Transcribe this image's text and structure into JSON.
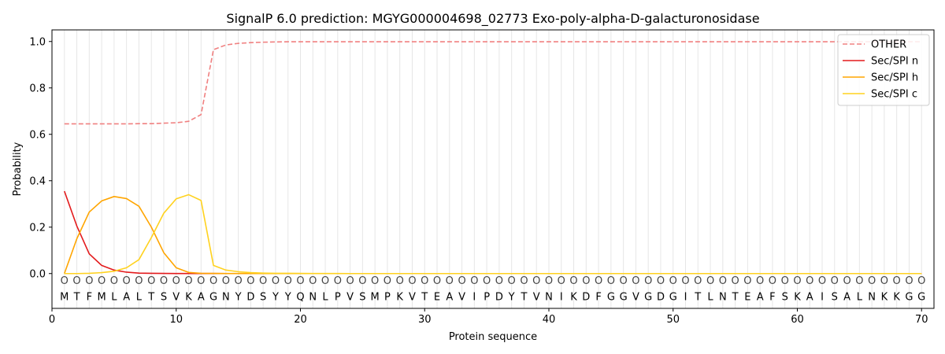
{
  "chart_data": {
    "type": "line",
    "title": "SignalP 6.0 prediction: MGYG000004698_02773 Exo-poly-alpha-D-galacturonosidase",
    "xlabel": "Protein sequence",
    "ylabel": "Probability",
    "xlim": [
      0,
      71
    ],
    "ylim": [
      -0.15,
      1.05
    ],
    "xticks": [
      0,
      10,
      20,
      30,
      40,
      50,
      60,
      70
    ],
    "yticks": [
      0.0,
      0.2,
      0.4,
      0.6,
      0.8,
      1.0
    ],
    "xtick_labels": [
      "0",
      "10",
      "20",
      "30",
      "40",
      "50",
      "60",
      "70"
    ],
    "ytick_labels": [
      "0.0",
      "0.2",
      "0.4",
      "0.6",
      "0.8",
      "1.0"
    ],
    "vertical_grid": true,
    "legend_position": "top-right",
    "sequence": [
      "M",
      "T",
      "F",
      "M",
      "L",
      "A",
      "L",
      "T",
      "S",
      "V",
      "K",
      "A",
      "G",
      "N",
      "Y",
      "D",
      "S",
      "Y",
      "Y",
      "Q",
      "N",
      "L",
      "P",
      "V",
      "S",
      "M",
      "P",
      "K",
      "V",
      "T",
      "E",
      "A",
      "V",
      "I",
      "P",
      "D",
      "Y",
      "T",
      "V",
      "N",
      "I",
      "K",
      "D",
      "F",
      "G",
      "G",
      "V",
      "G",
      "D",
      "G",
      "I",
      "T",
      "L",
      "N",
      "T",
      "E",
      "A",
      "F",
      "S",
      "K",
      "A",
      "I",
      "S",
      "A",
      "L",
      "N",
      "K",
      "K",
      "G",
      "G"
    ],
    "region_labels": [
      "O",
      "O",
      "O",
      "O",
      "O",
      "O",
      "O",
      "O",
      "O",
      "O",
      "O",
      "O",
      "O",
      "O",
      "O",
      "O",
      "O",
      "O",
      "O",
      "O",
      "O",
      "O",
      "O",
      "O",
      "O",
      "O",
      "O",
      "O",
      "O",
      "O",
      "O",
      "O",
      "O",
      "O",
      "O",
      "O",
      "O",
      "O",
      "O",
      "O",
      "O",
      "O",
      "O",
      "O",
      "O",
      "O",
      "O",
      "O",
      "O",
      "O",
      "O",
      "O",
      "O",
      "O",
      "O",
      "O",
      "O",
      "O",
      "O",
      "O",
      "O",
      "O",
      "O",
      "O",
      "O",
      "O",
      "O",
      "O",
      "O",
      "O"
    ],
    "series": [
      {
        "name": "OTHER",
        "color": "#f08080",
        "dash": "dashed",
        "values": [
          0.645,
          0.645,
          0.645,
          0.645,
          0.645,
          0.645,
          0.646,
          0.646,
          0.648,
          0.65,
          0.656,
          0.685,
          0.965,
          0.985,
          0.992,
          0.995,
          0.997,
          0.998,
          0.999,
          0.999,
          0.999,
          0.999,
          0.999,
          0.999,
          0.999,
          0.999,
          0.999,
          0.999,
          0.999,
          0.999,
          0.999,
          0.999,
          0.999,
          0.999,
          0.999,
          0.999,
          0.999,
          0.999,
          0.999,
          0.999,
          0.999,
          0.999,
          0.999,
          0.999,
          0.999,
          0.999,
          0.999,
          0.999,
          0.999,
          0.999,
          0.999,
          0.999,
          0.999,
          0.999,
          0.999,
          0.999,
          0.999,
          0.999,
          0.999,
          0.999,
          0.999,
          0.999,
          0.999,
          0.999,
          0.999,
          0.999,
          0.999,
          0.999,
          0.999,
          0.999
        ]
      },
      {
        "name": "Sec/SPI n",
        "color": "#e31a1c",
        "dash": "solid",
        "values": [
          0.355,
          0.205,
          0.085,
          0.035,
          0.015,
          0.006,
          0.002,
          0.001,
          0.0005,
          0.0003,
          0.0002,
          0.0001,
          0.0001,
          0,
          0,
          0,
          0,
          0,
          0,
          0,
          0,
          0,
          0,
          0,
          0,
          0,
          0,
          0,
          0,
          0,
          0,
          0,
          0,
          0,
          0,
          0,
          0,
          0,
          0,
          0,
          0,
          0,
          0,
          0,
          0,
          0,
          0,
          0,
          0,
          0,
          0,
          0,
          0,
          0,
          0,
          0,
          0,
          0,
          0,
          0,
          0,
          0,
          0,
          0,
          0,
          0,
          0,
          0,
          0,
          0
        ]
      },
      {
        "name": "Sec/SPI h",
        "color": "#ffa500",
        "dash": "solid",
        "values": [
          0.0,
          0.15,
          0.265,
          0.313,
          0.332,
          0.323,
          0.29,
          0.2,
          0.09,
          0.025,
          0.005,
          0.001,
          0.0005,
          0.0003,
          0.0002,
          0.0001,
          0,
          0,
          0,
          0,
          0,
          0,
          0,
          0,
          0,
          0,
          0,
          0,
          0,
          0,
          0,
          0,
          0,
          0,
          0,
          0,
          0,
          0,
          0,
          0,
          0,
          0,
          0,
          0,
          0,
          0,
          0,
          0,
          0,
          0,
          0,
          0,
          0,
          0,
          0,
          0,
          0,
          0,
          0,
          0,
          0,
          0,
          0,
          0,
          0,
          0,
          0,
          0,
          0,
          0
        ]
      },
      {
        "name": "Sec/SPI c",
        "color": "#ffd21f",
        "dash": "solid",
        "values": [
          0.0,
          0.0,
          0.001,
          0.004,
          0.01,
          0.025,
          0.06,
          0.155,
          0.26,
          0.322,
          0.34,
          0.315,
          0.035,
          0.015,
          0.008,
          0.004,
          0.002,
          0.001,
          0.001,
          0.0005,
          0.0003,
          0.0002,
          0.0001,
          0,
          0,
          0,
          0,
          0,
          0,
          0,
          0,
          0,
          0,
          0,
          0,
          0,
          0,
          0,
          0,
          0,
          0,
          0,
          0,
          0,
          0,
          0,
          0,
          0,
          0,
          0,
          0,
          0,
          0,
          0,
          0,
          0,
          0,
          0,
          0,
          0,
          0,
          0,
          0,
          0,
          0,
          0,
          0,
          0,
          0,
          0
        ]
      }
    ]
  }
}
